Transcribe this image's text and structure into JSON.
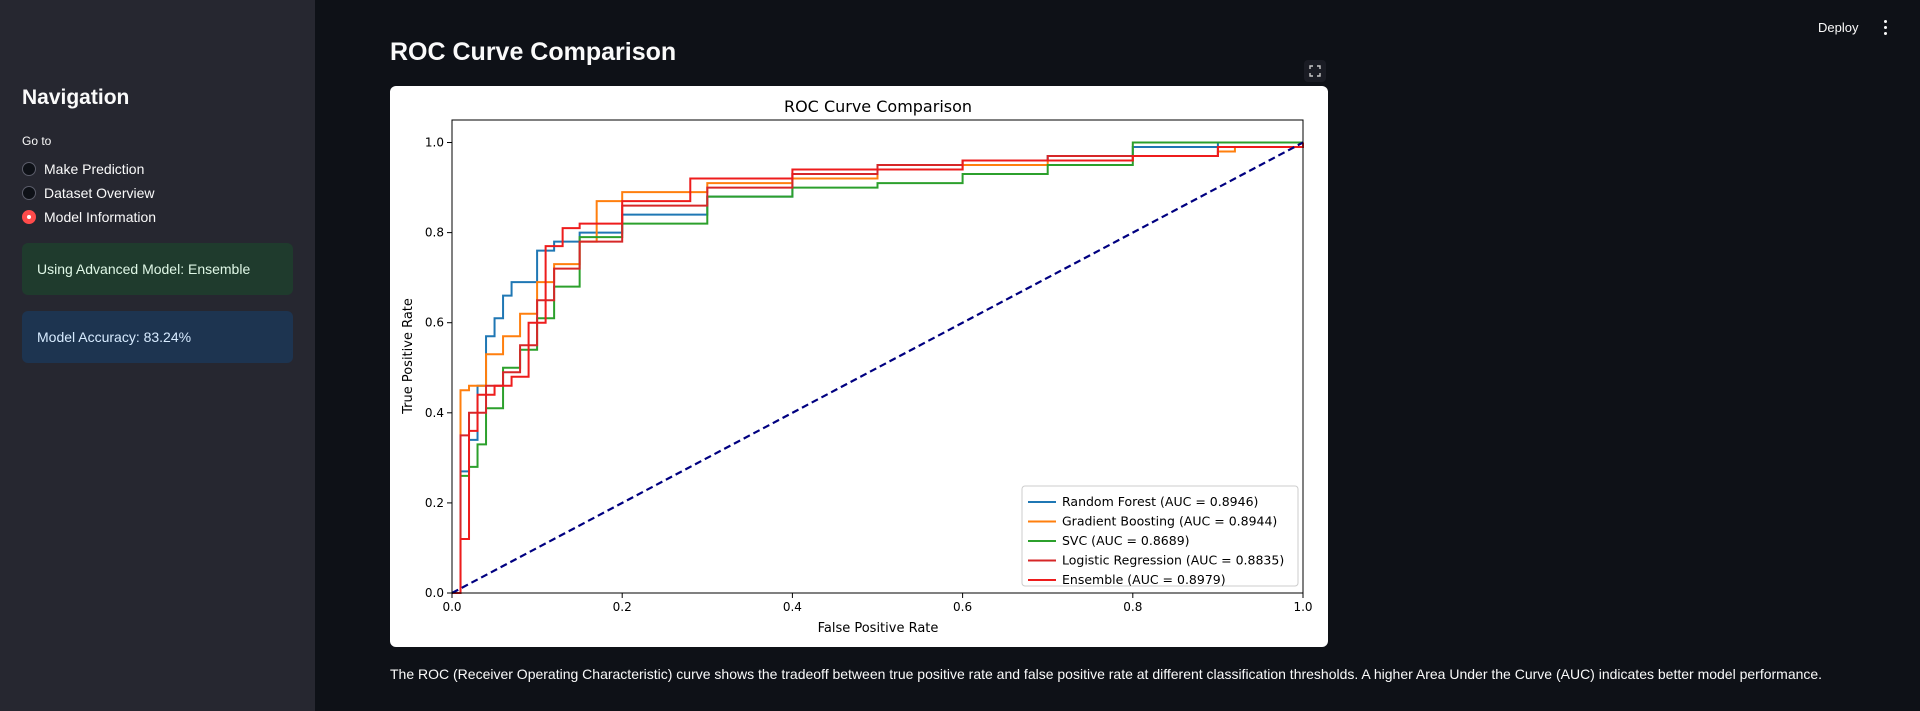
{
  "header": {
    "deploy_label": "Deploy",
    "menu_icon": "more-vertical-icon"
  },
  "sidebar": {
    "title": "Navigation",
    "radio_label": "Go to",
    "options": [
      {
        "label": "Make Prediction",
        "selected": false
      },
      {
        "label": "Dataset Overview",
        "selected": false
      },
      {
        "label": "Model Information",
        "selected": true
      }
    ],
    "success_message": "Using Advanced Model: Ensemble",
    "info_message": "Model Accuracy: 83.24%"
  },
  "main": {
    "section_title": "ROC Curve Comparison",
    "caption": "The ROC (Receiver Operating Characteristic) curve shows the tradeoff between true positive rate and false positive rate at different classification thresholds. A higher Area Under the Curve (AUC) indicates better model performance.",
    "fullscreen_icon": "fullscreen-icon"
  },
  "chart_data": {
    "type": "line",
    "title": "ROC Curve Comparison",
    "xlabel": "False Positive Rate",
    "ylabel": "True Positive Rate",
    "xlim": [
      0,
      1
    ],
    "ylim": [
      0,
      1.05
    ],
    "xticks": [
      "0.0",
      "0.2",
      "0.4",
      "0.6",
      "0.8",
      "1.0"
    ],
    "yticks": [
      "0.0",
      "0.2",
      "0.4",
      "0.6",
      "0.8",
      "1.0"
    ],
    "legend_position": "lower-right",
    "grid": false,
    "series": [
      {
        "name": "Random Forest (AUC = 0.8946)",
        "color": "#1f77b4",
        "x": [
          0,
          0.01,
          0.02,
          0.03,
          0.04,
          0.05,
          0.06,
          0.07,
          0.08,
          0.1,
          0.12,
          0.15,
          0.2,
          0.3,
          0.4,
          0.5,
          0.6,
          0.7,
          0.8,
          0.9,
          1.0
        ],
        "y": [
          0,
          0.27,
          0.34,
          0.46,
          0.57,
          0.61,
          0.66,
          0.69,
          0.69,
          0.76,
          0.78,
          0.8,
          0.84,
          0.88,
          0.93,
          0.95,
          0.96,
          0.97,
          0.99,
          1.0,
          1.0
        ]
      },
      {
        "name": "Gradient Boosting (AUC = 0.8944)",
        "color": "#ff7f0e",
        "x": [
          0,
          0.01,
          0.02,
          0.04,
          0.06,
          0.08,
          0.1,
          0.12,
          0.15,
          0.17,
          0.2,
          0.3,
          0.4,
          0.5,
          0.6,
          0.7,
          0.8,
          0.9,
          0.92,
          1.0
        ],
        "y": [
          0,
          0.45,
          0.46,
          0.53,
          0.57,
          0.62,
          0.69,
          0.73,
          0.78,
          0.87,
          0.89,
          0.91,
          0.92,
          0.94,
          0.95,
          0.96,
          0.97,
          0.98,
          0.99,
          1.0
        ]
      },
      {
        "name": "SVC (AUC = 0.8689)",
        "color": "#2ca02c",
        "x": [
          0,
          0.01,
          0.02,
          0.03,
          0.04,
          0.06,
          0.08,
          0.1,
          0.12,
          0.15,
          0.2,
          0.3,
          0.4,
          0.5,
          0.6,
          0.7,
          0.8,
          0.9,
          1.0
        ],
        "y": [
          0,
          0.26,
          0.28,
          0.33,
          0.41,
          0.5,
          0.54,
          0.61,
          0.68,
          0.79,
          0.82,
          0.88,
          0.9,
          0.91,
          0.93,
          0.95,
          1.0,
          1.0,
          1.0
        ]
      },
      {
        "name": "Logistic Regression (AUC = 0.8835)",
        "color": "#d62728",
        "x": [
          0,
          0.01,
          0.02,
          0.04,
          0.06,
          0.08,
          0.1,
          0.12,
          0.15,
          0.2,
          0.3,
          0.4,
          0.5,
          0.6,
          0.7,
          0.8,
          0.9,
          1.0
        ],
        "y": [
          0,
          0.35,
          0.4,
          0.46,
          0.49,
          0.55,
          0.65,
          0.72,
          0.78,
          0.86,
          0.9,
          0.93,
          0.95,
          0.96,
          0.97,
          0.97,
          0.99,
          1.0
        ]
      },
      {
        "name": "Ensemble (AUC = 0.8979)",
        "color": "#ee1c1c",
        "x": [
          0,
          0.01,
          0.02,
          0.03,
          0.05,
          0.07,
          0.09,
          0.11,
          0.13,
          0.15,
          0.2,
          0.28,
          0.4,
          0.6,
          0.8,
          0.9,
          1.0
        ],
        "y": [
          0,
          0.12,
          0.36,
          0.44,
          0.46,
          0.48,
          0.6,
          0.77,
          0.81,
          0.82,
          0.87,
          0.92,
          0.94,
          0.96,
          0.97,
          0.99,
          1.0
        ]
      }
    ],
    "reference_line": {
      "x": [
        0,
        1
      ],
      "y": [
        0,
        1
      ],
      "color": "#000080",
      "style": "dashed"
    }
  }
}
